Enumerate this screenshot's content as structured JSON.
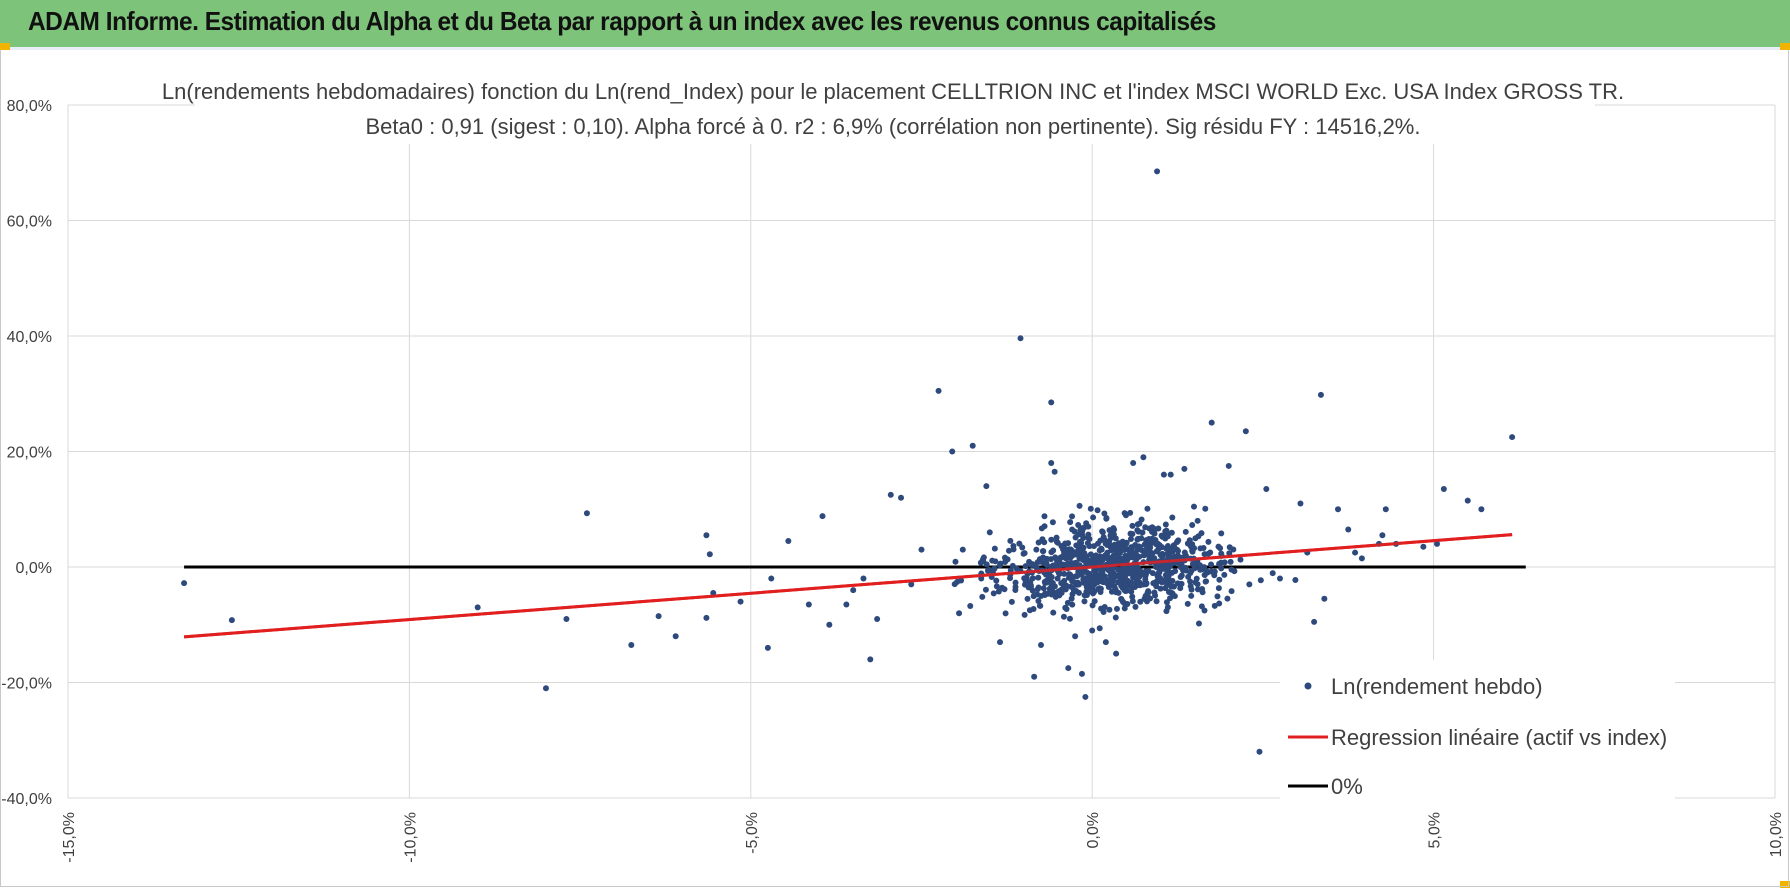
{
  "header": {
    "title": "ADAM Informe. Estimation du Alpha et du Beta par rapport à un index avec les revenus connus capitalisés",
    "background_color": "#7dc47a",
    "corner_color": "#f0b400"
  },
  "chart_data": {
    "type": "scatter",
    "title_line1": "Ln(rendements hebdomadaires) fonction du Ln(rend_Index) pour le placement CELLTRION INC et l'index MSCI WORLD Exc. USA Index GROSS TR.",
    "title_line2": "Beta0 : 0,91 (sigest : 0,10).  Alpha forcé à 0. r2 : 6,9% (corrélation non pertinente). Sig résidu FY : 14516,2%.",
    "xlabel": "",
    "ylabel": "",
    "xlim": [
      -0.15,
      0.1
    ],
    "ylim": [
      -0.4,
      0.8
    ],
    "x_ticks": [
      -0.15,
      -0.1,
      -0.05,
      0.0,
      0.05,
      0.1
    ],
    "x_tick_labels": [
      "-15,0%",
      "-10,0%",
      "-5,0%",
      "0,0%",
      "5,0%",
      "10,0%"
    ],
    "y_ticks": [
      -0.4,
      -0.2,
      0.0,
      0.2,
      0.4,
      0.6,
      0.8
    ],
    "y_tick_labels": [
      "-40,0%",
      "-20,0%",
      "0,0%",
      "20,0%",
      "40,0%",
      "60,0%",
      "80,0%"
    ],
    "grid": true,
    "legend_position": "bottom-right",
    "series": [
      {
        "name": "Ln(rendement hebdo)",
        "kind": "scatter",
        "color": "#2e4a7d",
        "points": [
          [
            -0.133,
            -0.028
          ],
          [
            -0.126,
            -0.092
          ],
          [
            -0.09,
            -0.07
          ],
          [
            -0.08,
            -0.21
          ],
          [
            -0.077,
            -0.09
          ],
          [
            -0.074,
            0.093
          ],
          [
            -0.0675,
            -0.135
          ],
          [
            -0.0635,
            -0.085
          ],
          [
            -0.061,
            -0.12
          ],
          [
            -0.0565,
            0.055
          ],
          [
            -0.056,
            0.022
          ],
          [
            -0.0565,
            -0.088
          ],
          [
            -0.0555,
            -0.045
          ],
          [
            -0.0515,
            -0.06
          ],
          [
            -0.0475,
            -0.14
          ],
          [
            -0.047,
            -0.02
          ],
          [
            -0.0445,
            0.045
          ],
          [
            -0.0415,
            -0.065
          ],
          [
            -0.0395,
            0.088
          ],
          [
            -0.0385,
            -0.1
          ],
          [
            -0.036,
            -0.065
          ],
          [
            -0.035,
            -0.04
          ],
          [
            -0.0335,
            -0.02
          ],
          [
            -0.0325,
            -0.16
          ],
          [
            -0.0315,
            -0.09
          ],
          [
            -0.0295,
            0.125
          ],
          [
            -0.028,
            0.12
          ],
          [
            -0.0265,
            -0.03
          ],
          [
            -0.025,
            0.03
          ],
          [
            -0.0225,
            0.305
          ],
          [
            -0.0205,
            0.2
          ],
          [
            -0.0195,
            -0.08
          ],
          [
            -0.0175,
            0.21
          ],
          [
            -0.0155,
            0.14
          ],
          [
            -0.015,
            0.06
          ],
          [
            -0.0135,
            -0.13
          ],
          [
            -0.0105,
            0.396
          ],
          [
            -0.0085,
            -0.19
          ],
          [
            -0.0075,
            -0.135
          ],
          [
            -0.006,
            0.285
          ],
          [
            -0.006,
            0.18
          ],
          [
            -0.0055,
            0.165
          ],
          [
            -0.0035,
            -0.175
          ],
          [
            -0.0025,
            -0.12
          ],
          [
            -0.0015,
            -0.185
          ],
          [
            -0.001,
            -0.225
          ],
          [
            0.0,
            -0.11
          ],
          [
            0.002,
            -0.13
          ],
          [
            0.0035,
            -0.15
          ],
          [
            0.006,
            0.18
          ],
          [
            0.0075,
            0.19
          ],
          [
            0.0095,
            0.685
          ],
          [
            0.0105,
            0.16
          ],
          [
            0.0115,
            0.16
          ],
          [
            0.0135,
            0.17
          ],
          [
            0.0145,
            -0.05
          ],
          [
            0.0175,
            0.25
          ],
          [
            0.02,
            0.175
          ],
          [
            0.0225,
            0.235
          ],
          [
            0.0255,
            0.135
          ],
          [
            0.0245,
            -0.32
          ],
          [
            0.0275,
            -0.02
          ],
          [
            0.0305,
            0.11
          ],
          [
            0.0315,
            0.025
          ],
          [
            0.0325,
            -0.095
          ],
          [
            0.0335,
            0.298
          ],
          [
            0.034,
            -0.055
          ],
          [
            0.036,
            0.1
          ],
          [
            0.0375,
            0.065
          ],
          [
            0.0385,
            0.025
          ],
          [
            0.0395,
            0.015
          ],
          [
            0.042,
            0.04
          ],
          [
            0.0425,
            0.055
          ],
          [
            0.043,
            0.1
          ],
          [
            0.0445,
            0.04
          ],
          [
            0.0485,
            0.035
          ],
          [
            0.0505,
            0.04
          ],
          [
            0.0515,
            0.135
          ],
          [
            0.055,
            0.115
          ],
          [
            0.057,
            0.1
          ],
          [
            0.0615,
            0.225
          ]
        ]
      },
      {
        "name": "Regression linéaire (actif vs index)",
        "kind": "line",
        "color": "#e02020",
        "points": [
          [
            -0.133,
            -0.121
          ],
          [
            0.0615,
            0.056
          ]
        ]
      },
      {
        "name": "0%",
        "kind": "line",
        "color": "#000000",
        "points": [
          [
            -0.133,
            0.0
          ],
          [
            0.0635,
            0.0
          ]
        ]
      }
    ],
    "cluster": {
      "count": 900,
      "x_center": 0.003,
      "x_spread": 0.012,
      "y_spread": 0.05,
      "beta": 0.91
    }
  }
}
